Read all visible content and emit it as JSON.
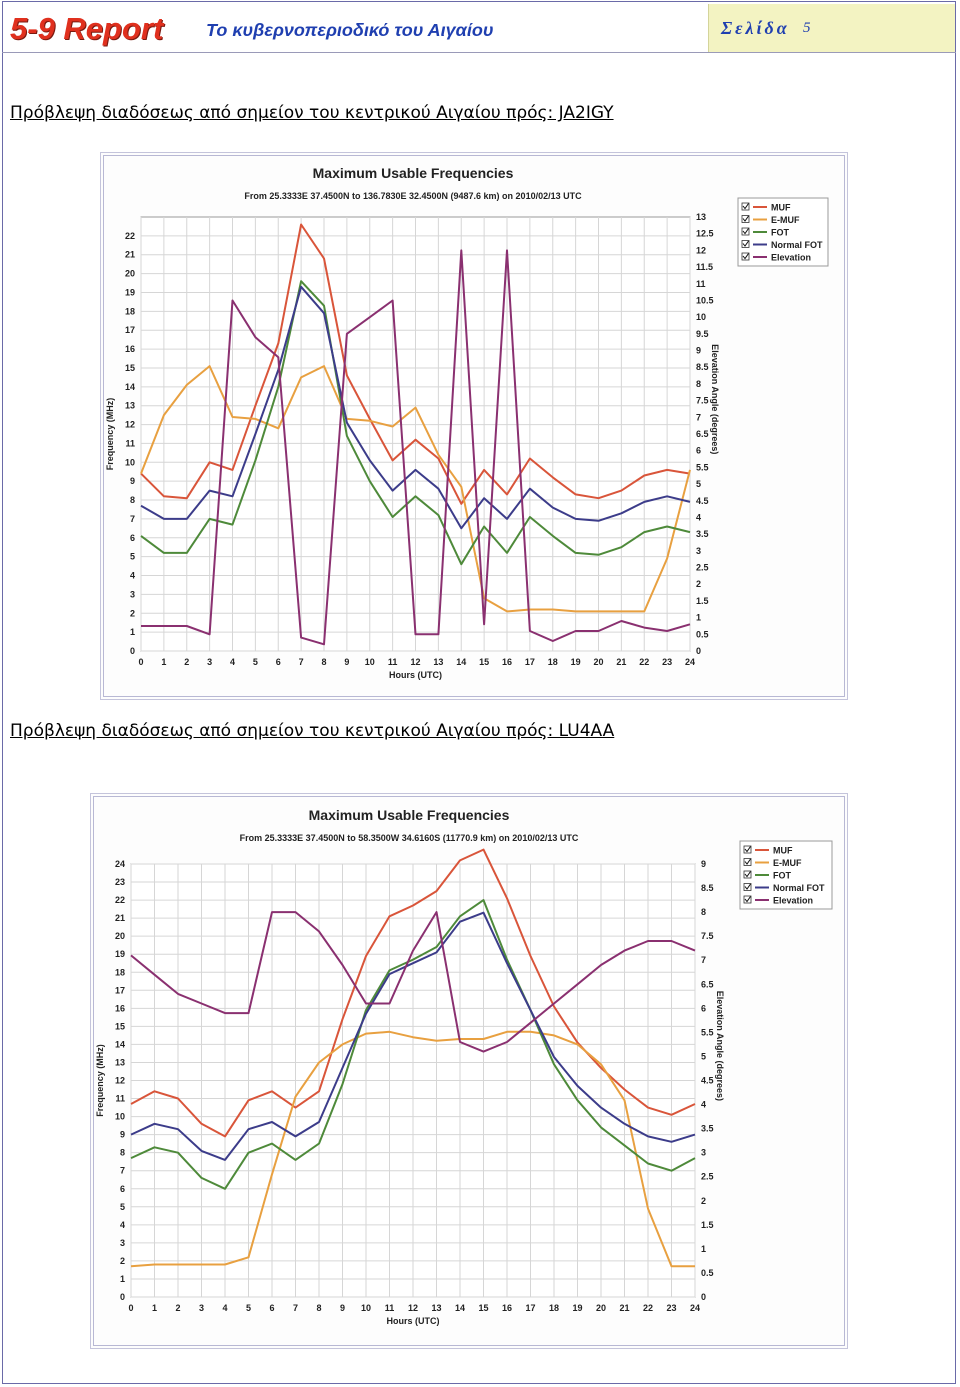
{
  "header": {
    "brand": "5-9 Report",
    "subtitle": "Το κυβερνοπεριοδικό του Αιγαίου",
    "page_label": "Σελίδα",
    "page_number": "5"
  },
  "sections": [
    {
      "title": "Πρόβλεψη διαδόσεως από σημείον του κεντρικού Αιγαίου πρός:  JA2IGY"
    },
    {
      "title": "Πρόβλεψη διαδόσεως από σημείον του κεντρικού Αιγαίου πρός:  LU4AA"
    }
  ],
  "chart_data": [
    {
      "type": "line",
      "title": "Maximum Usable Frequencies",
      "subtitle": "From  25.3333E 37.4500N to 136.7830E 32.4500N (9487.6 km) on 2010/02/13 UTC",
      "xlabel": "Hours (UTC)",
      "ylabel": "Frequency (MHz)",
      "y2label": "Elevation Angle (degrees)",
      "xlim": [
        0,
        24
      ],
      "ylim": [
        0,
        23
      ],
      "y2lim": [
        0,
        13
      ],
      "x_ticks": [
        0,
        1,
        2,
        3,
        4,
        5,
        6,
        7,
        8,
        9,
        10,
        11,
        12,
        13,
        14,
        15,
        16,
        17,
        18,
        19,
        20,
        21,
        22,
        23,
        24
      ],
      "y_ticks": [
        0,
        1,
        2,
        3,
        4,
        5,
        6,
        7,
        8,
        9,
        10,
        11,
        12,
        13,
        14,
        15,
        16,
        17,
        18,
        19,
        20,
        21,
        22
      ],
      "y2_ticks": [
        "0",
        "0.5",
        "1",
        "1.5",
        "2",
        "2.5",
        "3",
        "3.5",
        "4",
        "4.5",
        "5",
        "5.5",
        "6",
        "6.5",
        "7",
        "7.5",
        "8",
        "8.5",
        "9",
        "9.5",
        "10",
        "10.5",
        "11",
        "11.5",
        "12",
        "12.5",
        "13"
      ],
      "grid": true,
      "legend_position": "top-right",
      "x": [
        0,
        1,
        2,
        3,
        4,
        5,
        6,
        7,
        8,
        9,
        10,
        11,
        12,
        13,
        14,
        15,
        16,
        17,
        18,
        19,
        20,
        21,
        22,
        23,
        24
      ],
      "series": [
        {
          "name": "MUF",
          "color": "#d9553a",
          "axis": "left",
          "values": [
            9.4,
            8.2,
            8.1,
            10.0,
            9.6,
            13.0,
            16.3,
            22.6,
            20.8,
            14.6,
            12.3,
            10.1,
            11.2,
            10.2,
            7.8,
            9.6,
            8.3,
            10.2,
            9.2,
            8.3,
            8.1,
            8.5,
            9.3,
            9.6,
            9.4
          ]
        },
        {
          "name": "E-MUF",
          "color": "#e8a040",
          "axis": "left",
          "values": [
            9.4,
            12.5,
            14.1,
            15.1,
            12.4,
            12.3,
            11.8,
            14.5,
            15.1,
            12.3,
            12.2,
            11.9,
            12.9,
            10.4,
            8.7,
            2.8,
            2.1,
            2.2,
            2.2,
            2.1,
            2.1,
            2.1,
            2.1,
            4.9,
            9.6
          ]
        },
        {
          "name": "FOT",
          "color": "#4e8a3a",
          "axis": "left",
          "values": [
            6.1,
            5.2,
            5.2,
            7.0,
            6.7,
            10.1,
            14.0,
            19.6,
            18.3,
            11.4,
            9.0,
            7.1,
            8.2,
            7.2,
            4.6,
            6.6,
            5.2,
            7.1,
            6.1,
            5.2,
            5.1,
            5.5,
            6.3,
            6.6,
            6.3
          ]
        },
        {
          "name": "Normal FOT",
          "color": "#3c3c8a",
          "axis": "left",
          "values": [
            7.7,
            7.0,
            7.0,
            8.5,
            8.2,
            11.5,
            14.9,
            19.3,
            17.9,
            12.1,
            10.1,
            8.5,
            9.6,
            8.6,
            6.5,
            8.1,
            7.0,
            8.6,
            7.6,
            7.0,
            6.9,
            7.3,
            7.9,
            8.2,
            7.9
          ]
        },
        {
          "name": "Elevation",
          "color": "#8a3070",
          "axis": "right",
          "values": [
            0.75,
            0.75,
            0.75,
            0.5,
            10.5,
            9.4,
            8.8,
            0.4,
            0.2,
            9.5,
            10.0,
            10.5,
            0.5,
            0.5,
            12.0,
            0.8,
            12.0,
            0.6,
            0.3,
            0.6,
            0.6,
            0.9,
            0.7,
            0.6,
            0.8
          ]
        }
      ]
    },
    {
      "type": "line",
      "title": "Maximum Usable Frequencies",
      "subtitle": "From  25.3333E 37.4500N to  58.3500W 34.6160S (11770.9 km) on 2010/02/13 UTC",
      "xlabel": "Hours (UTC)",
      "ylabel": "Frequency (MHz)",
      "y2label": "Elevation Angle (degrees)",
      "xlim": [
        0,
        24
      ],
      "ylim": [
        0,
        24
      ],
      "y2lim": [
        0,
        9
      ],
      "x_ticks": [
        0,
        1,
        2,
        3,
        4,
        5,
        6,
        7,
        8,
        9,
        10,
        11,
        12,
        13,
        14,
        15,
        16,
        17,
        18,
        19,
        20,
        21,
        22,
        23,
        24
      ],
      "y_ticks": [
        0,
        1,
        2,
        3,
        4,
        5,
        6,
        7,
        8,
        9,
        10,
        11,
        12,
        13,
        14,
        15,
        16,
        17,
        18,
        19,
        20,
        21,
        22,
        23,
        24
      ],
      "y2_ticks": [
        "0",
        "0.5",
        "1",
        "1.5",
        "2",
        "2.5",
        "3",
        "3.5",
        "4",
        "4.5",
        "5",
        "5.5",
        "6",
        "6.5",
        "7",
        "7.5",
        "8",
        "8.5",
        "9"
      ],
      "grid": true,
      "legend_position": "top-right",
      "x": [
        0,
        1,
        2,
        3,
        4,
        5,
        6,
        7,
        8,
        9,
        10,
        11,
        12,
        13,
        14,
        15,
        16,
        17,
        18,
        19,
        20,
        21,
        22,
        23,
        24
      ],
      "series": [
        {
          "name": "MUF",
          "color": "#d9553a",
          "axis": "left",
          "values": [
            10.7,
            11.4,
            11.0,
            9.6,
            8.9,
            10.9,
            11.4,
            10.5,
            11.4,
            15.4,
            18.9,
            21.1,
            21.7,
            22.5,
            24.2,
            24.8,
            22.1,
            18.9,
            16.1,
            14.1,
            12.7,
            11.5,
            10.5,
            10.1,
            10.7
          ]
        },
        {
          "name": "E-MUF",
          "color": "#e8a040",
          "axis": "left",
          "values": [
            1.7,
            1.8,
            1.8,
            1.8,
            1.8,
            2.2,
            6.8,
            11.1,
            13.0,
            14.0,
            14.6,
            14.7,
            14.4,
            14.2,
            14.3,
            14.3,
            14.7,
            14.7,
            14.5,
            14.0,
            12.9,
            10.9,
            4.9,
            1.7,
            1.7
          ]
        },
        {
          "name": "FOT",
          "color": "#4e8a3a",
          "axis": "left",
          "values": [
            7.7,
            8.3,
            8.0,
            6.6,
            6.0,
            8.0,
            8.5,
            7.6,
            8.5,
            11.8,
            15.9,
            18.1,
            18.7,
            19.4,
            21.1,
            22.0,
            18.7,
            15.9,
            12.9,
            10.9,
            9.4,
            8.4,
            7.4,
            7.0,
            7.7
          ]
        },
        {
          "name": "Normal FOT",
          "color": "#3c3c8a",
          "axis": "left",
          "values": [
            9.0,
            9.6,
            9.3,
            8.1,
            7.6,
            9.3,
            9.7,
            8.9,
            9.7,
            12.7,
            15.7,
            17.9,
            18.5,
            19.1,
            20.8,
            21.3,
            18.5,
            15.9,
            13.3,
            11.7,
            10.5,
            9.6,
            8.9,
            8.6,
            9.0
          ]
        },
        {
          "name": "Elevation",
          "color": "#8a3070",
          "axis": "right",
          "values": [
            7.1,
            6.7,
            6.3,
            6.1,
            5.9,
            5.9,
            8.0,
            8.0,
            7.6,
            6.9,
            6.1,
            6.1,
            7.2,
            8.0,
            5.3,
            5.1,
            5.3,
            5.7,
            6.1,
            6.5,
            6.9,
            7.2,
            7.4,
            7.4,
            7.2
          ]
        }
      ]
    }
  ]
}
